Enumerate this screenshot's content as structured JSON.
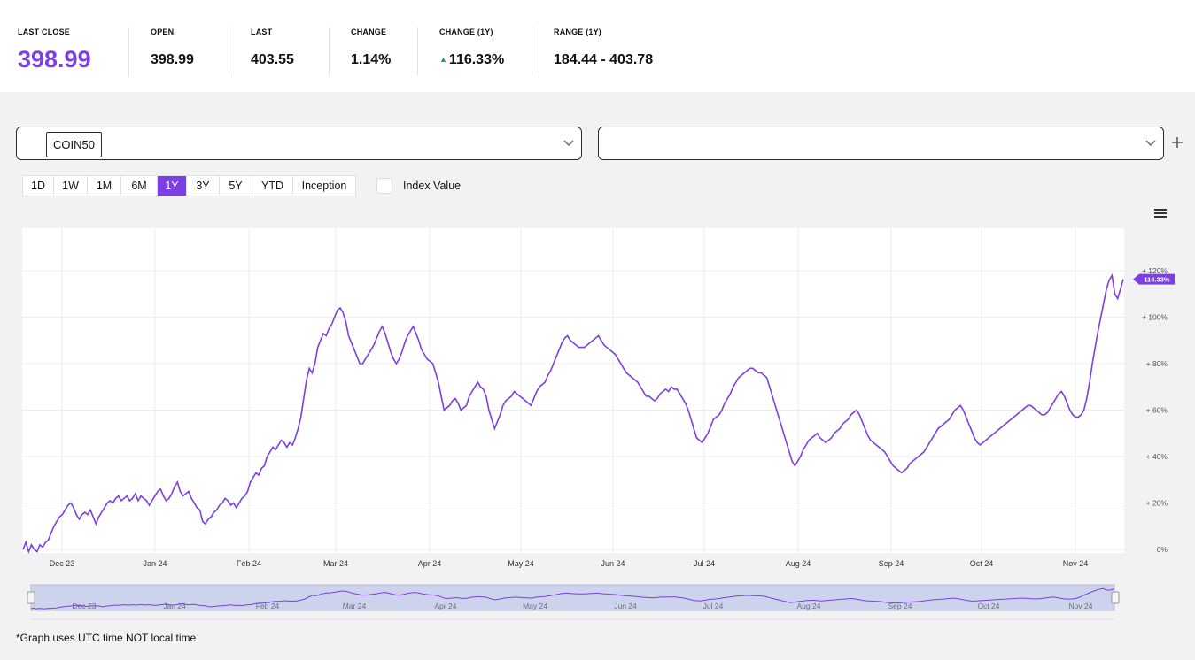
{
  "stats": {
    "last_close": {
      "label": "LAST CLOSE",
      "value": "398.99"
    },
    "open": {
      "label": "OPEN",
      "value": "398.99"
    },
    "last": {
      "label": "LAST",
      "value": "403.55"
    },
    "change": {
      "label": "CHANGE",
      "value": "1.14%"
    },
    "change_1y": {
      "label": "CHANGE (1Y)",
      "value": "116.33%",
      "arrow": "▲"
    },
    "range_1y": {
      "label": "RANGE (1Y)",
      "value": "184.44 - 403.78"
    }
  },
  "selectors": {
    "primary": {
      "chip": "COIN50"
    },
    "secondary": {
      "chip": ""
    },
    "add_icon": "plus-icon"
  },
  "ranges": {
    "buttons": [
      "1D",
      "1W",
      "1M",
      "6M",
      "1Y",
      "3Y",
      "5Y",
      "YTD",
      "Inception"
    ],
    "active": "1Y"
  },
  "index_value": {
    "label": "Index Value",
    "checked": false
  },
  "colors": {
    "accent": "#7b3fe4",
    "up": "#1aa36f"
  },
  "chart_data": {
    "type": "line",
    "series": [
      {
        "values": [
          0,
          3,
          -1,
          2,
          0,
          -1,
          2,
          1,
          3,
          4,
          7,
          10,
          12,
          14,
          15,
          17,
          19,
          20,
          18,
          15,
          13,
          15,
          16,
          15,
          17,
          14,
          11,
          14,
          16,
          18,
          20,
          21,
          20,
          22,
          23,
          21,
          22,
          23,
          21,
          22,
          24,
          21,
          23,
          22,
          21,
          19,
          21,
          23,
          25,
          26,
          23,
          21,
          22,
          24,
          27,
          29,
          25,
          23,
          24,
          25,
          22,
          20,
          18,
          17,
          12,
          11,
          13,
          14,
          16,
          17,
          19,
          20,
          22,
          21,
          19,
          20,
          18,
          20,
          22,
          23,
          25,
          29,
          31,
          33,
          32,
          35,
          36,
          40,
          42,
          44,
          43,
          45,
          47,
          46,
          44,
          46,
          45,
          48,
          52,
          57,
          65,
          73,
          78,
          76,
          80,
          87,
          90,
          93,
          92,
          95,
          97,
          100,
          103,
          104,
          102,
          98,
          92,
          89,
          86,
          83,
          80,
          80,
          82,
          84,
          86,
          88,
          91,
          94,
          96,
          93,
          89,
          85,
          82,
          80,
          82,
          85,
          89,
          92,
          94,
          96,
          93,
          90,
          86,
          84,
          82,
          81,
          80,
          76,
          72,
          66,
          60,
          61,
          62,
          64,
          65,
          63,
          60,
          61,
          62,
          66,
          68,
          70,
          72,
          70,
          69,
          66,
          60,
          56,
          52,
          55,
          58,
          62,
          64,
          65,
          66,
          68,
          67,
          66,
          65,
          64,
          63,
          62,
          65,
          68,
          70,
          71,
          72,
          75,
          77,
          80,
          83,
          86,
          89,
          91,
          92,
          90,
          89,
          88,
          87,
          87,
          87,
          88,
          89,
          90,
          91,
          92,
          90,
          88,
          87,
          86,
          85,
          84,
          82,
          80,
          78,
          76,
          75,
          74,
          73,
          72,
          70,
          68,
          66,
          66,
          65,
          64,
          65,
          67,
          68,
          69,
          68,
          70,
          69,
          69,
          67,
          65,
          63,
          60,
          56,
          52,
          48,
          47,
          46,
          48,
          50,
          53,
          56,
          57,
          58,
          60,
          63,
          65,
          67,
          70,
          72,
          74,
          75,
          76,
          77,
          78,
          78,
          77,
          76,
          76,
          75,
          74,
          70,
          66,
          62,
          58,
          54,
          50,
          46,
          42,
          38,
          36,
          38,
          40,
          43,
          45,
          47,
          48,
          49,
          50,
          48,
          47,
          46,
          47,
          48,
          50,
          51,
          52,
          54,
          55,
          56,
          58,
          59,
          60,
          58,
          55,
          52,
          49,
          47,
          46,
          45,
          44,
          43,
          42,
          40,
          38,
          36,
          35,
          34,
          33,
          34,
          35,
          37,
          38,
          39,
          40,
          41,
          42,
          44,
          46,
          48,
          50,
          52,
          53,
          54,
          55,
          56,
          58,
          60,
          61,
          62,
          60,
          57,
          54,
          51,
          48,
          46,
          45,
          46,
          47,
          48,
          49,
          50,
          51,
          52,
          53,
          54,
          55,
          56,
          57,
          58,
          59,
          60,
          61,
          62,
          62,
          61,
          60,
          59,
          58,
          58,
          59,
          61,
          63,
          65,
          67,
          68,
          66,
          63,
          60,
          58,
          57,
          57,
          58,
          60,
          65,
          72,
          80,
          87,
          94,
          100,
          106,
          112,
          116,
          118,
          110,
          108,
          112,
          116.33
        ]
      }
    ],
    "x_ticks": [
      "Dec 23",
      "Jan 24",
      "Feb 24",
      "Mar 24",
      "Apr 24",
      "May 24",
      "Jun 24",
      "Jul 24",
      "Aug 24",
      "Sep 24",
      "Oct 24",
      "Nov 24"
    ],
    "y_ticks": [
      "0%",
      "+ 20%",
      "+ 40%",
      "+ 60%",
      "+ 80%",
      "+ 100%",
      "+ 120%"
    ],
    "ylim": [
      0,
      140
    ],
    "last_label": "116.33%",
    "grid": true,
    "line_color": "#7b3fe4"
  },
  "footnote": "*Graph uses UTC time NOT local time"
}
